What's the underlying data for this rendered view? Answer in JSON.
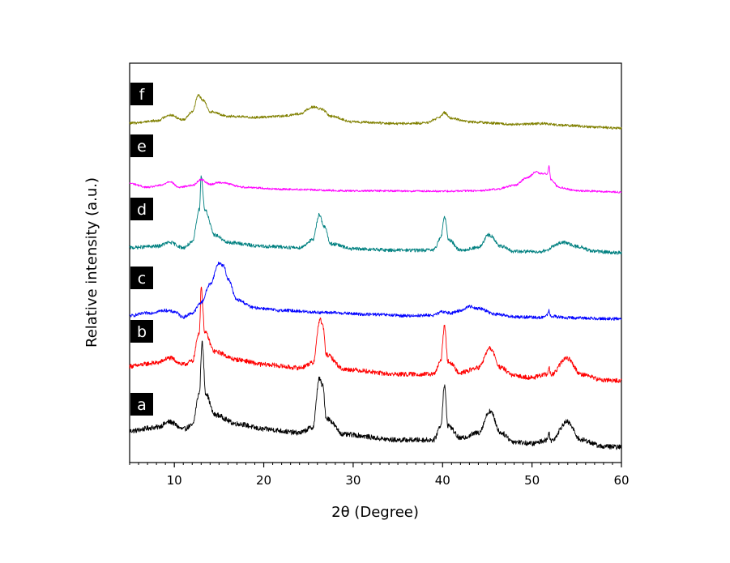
{
  "chart_data": {
    "type": "line",
    "xlabel": "2θ (Degree)",
    "ylabel": "Relative intensity (a.u.)",
    "xlim": [
      5,
      60
    ],
    "xticks": [
      10,
      20,
      30,
      40,
      50,
      60
    ],
    "ylim": [
      0,
      100
    ],
    "yticks_shown": false,
    "grid": false,
    "legend": "none (curves tagged a–f on the left)",
    "series": [
      {
        "name": "a",
        "color": "#000000",
        "baseline": 3,
        "noise": 0.7,
        "points": [
          [
            5,
            7.5
          ],
          [
            8,
            8.5
          ],
          [
            9.5,
            10
          ],
          [
            11,
            8
          ],
          [
            12,
            9
          ],
          [
            12.8,
            18
          ],
          [
            13.1,
            32
          ],
          [
            13.5,
            18
          ],
          [
            14.5,
            12
          ],
          [
            17,
            9.5
          ],
          [
            20,
            8
          ],
          [
            24,
            7
          ],
          [
            25.5,
            8.5
          ],
          [
            26.2,
            22
          ],
          [
            26.6,
            20
          ],
          [
            27,
            11
          ],
          [
            29,
            6.5
          ],
          [
            35,
            5
          ],
          [
            39,
            5
          ],
          [
            39.8,
            9
          ],
          [
            40.2,
            20
          ],
          [
            40.6,
            9
          ],
          [
            42,
            5.5
          ],
          [
            44,
            7
          ],
          [
            45.3,
            13
          ],
          [
            46.5,
            7
          ],
          [
            48,
            4.5
          ],
          [
            50,
            4
          ],
          [
            51.7,
            5
          ],
          [
            51.9,
            7
          ],
          [
            52.1,
            4.8
          ],
          [
            53.9,
            10
          ],
          [
            55.5,
            5
          ],
          [
            58,
            3.2
          ],
          [
            60,
            3
          ]
        ]
      },
      {
        "name": "b",
        "color": "#ff0000",
        "baseline": 3,
        "noise": 0.7,
        "points": [
          [
            5,
            7.5
          ],
          [
            8,
            8.5
          ],
          [
            9.5,
            10
          ],
          [
            11,
            8
          ],
          [
            12,
            9
          ],
          [
            12.8,
            18
          ],
          [
            13.0,
            32
          ],
          [
            13.4,
            18
          ],
          [
            14.5,
            12
          ],
          [
            17,
            9.5
          ],
          [
            20,
            8
          ],
          [
            24,
            7
          ],
          [
            25.5,
            8.5
          ],
          [
            26.3,
            22
          ],
          [
            26.6,
            20
          ],
          [
            27,
            11
          ],
          [
            29,
            6.5
          ],
          [
            35,
            5
          ],
          [
            39,
            5
          ],
          [
            39.8,
            9
          ],
          [
            40.2,
            20
          ],
          [
            40.6,
            9
          ],
          [
            42,
            5.5
          ],
          [
            44,
            7
          ],
          [
            45.3,
            13
          ],
          [
            46.5,
            7
          ],
          [
            48,
            4.5
          ],
          [
            50,
            4
          ],
          [
            51.7,
            5
          ],
          [
            51.9,
            7
          ],
          [
            52.1,
            4.8
          ],
          [
            53.9,
            10
          ],
          [
            55.5,
            5
          ],
          [
            58,
            3.2
          ],
          [
            60,
            3
          ]
        ]
      },
      {
        "name": "c",
        "color": "#0000ff",
        "baseline": 3,
        "noise": 0.6,
        "points": [
          [
            5,
            4
          ],
          [
            7,
            5
          ],
          [
            9,
            6
          ],
          [
            10,
            5.5
          ],
          [
            11,
            3.5
          ],
          [
            12,
            5
          ],
          [
            13,
            9
          ],
          [
            14,
            16
          ],
          [
            15,
            24
          ],
          [
            15.5,
            23
          ],
          [
            16,
            18
          ],
          [
            17,
            10
          ],
          [
            19,
            7
          ],
          [
            22,
            6
          ],
          [
            27,
            5.2
          ],
          [
            32,
            4.5
          ],
          [
            36,
            4
          ],
          [
            39,
            4.2
          ],
          [
            40,
            5.5
          ],
          [
            41,
            5
          ],
          [
            42,
            6
          ],
          [
            43,
            7.5
          ],
          [
            44,
            6.8
          ],
          [
            46,
            4.5
          ],
          [
            48,
            3.6
          ],
          [
            51,
            3.3
          ],
          [
            51.7,
            4
          ],
          [
            51.9,
            6
          ],
          [
            52.1,
            3.8
          ],
          [
            54,
            3.2
          ],
          [
            60,
            2.8
          ]
        ]
      },
      {
        "name": "d",
        "color": "#008080",
        "baseline": 3,
        "noise": 0.7,
        "points": [
          [
            5,
            5
          ],
          [
            8,
            5.5
          ],
          [
            9.5,
            7
          ],
          [
            11,
            5
          ],
          [
            12,
            7
          ],
          [
            12.8,
            20
          ],
          [
            13.0,
            33
          ],
          [
            13.4,
            20
          ],
          [
            14.5,
            10
          ],
          [
            16,
            7
          ],
          [
            20,
            5.5
          ],
          [
            24,
            5
          ],
          [
            25.5,
            8
          ],
          [
            26.2,
            18
          ],
          [
            26.8,
            13
          ],
          [
            27.5,
            6.5
          ],
          [
            30,
            4.5
          ],
          [
            35,
            4
          ],
          [
            39,
            4
          ],
          [
            39.8,
            9
          ],
          [
            40.2,
            17
          ],
          [
            40.7,
            8
          ],
          [
            42,
            4
          ],
          [
            44,
            5
          ],
          [
            45.2,
            10
          ],
          [
            46.5,
            5.5
          ],
          [
            48,
            3.5
          ],
          [
            51,
            3.5
          ],
          [
            53.5,
            7
          ],
          [
            55,
            5.5
          ],
          [
            57,
            3.5
          ],
          [
            60,
            3
          ]
        ]
      },
      {
        "name": "e",
        "color": "#ff00ff",
        "baseline": 3,
        "noise": 0.5,
        "points": [
          [
            5,
            7
          ],
          [
            7,
            5
          ],
          [
            8.5,
            6
          ],
          [
            9.5,
            8
          ],
          [
            10.5,
            5
          ],
          [
            12,
            6
          ],
          [
            13,
            9
          ],
          [
            14,
            6.5
          ],
          [
            15,
            7.5
          ],
          [
            18,
            5
          ],
          [
            22,
            4
          ],
          [
            30,
            3.2
          ],
          [
            40,
            3
          ],
          [
            44,
            3.2
          ],
          [
            46,
            4
          ],
          [
            48,
            6
          ],
          [
            49.5,
            10
          ],
          [
            50.5,
            13
          ],
          [
            51,
            12
          ],
          [
            51.7,
            12
          ],
          [
            51.9,
            16
          ],
          [
            52.1,
            9
          ],
          [
            53,
            5
          ],
          [
            55,
            3.2
          ],
          [
            60,
            2.5
          ]
        ]
      },
      {
        "name": "f",
        "color": "#808000",
        "baseline": 3,
        "noise": 0.55,
        "points": [
          [
            5,
            3
          ],
          [
            8,
            4
          ],
          [
            9.5,
            6.5
          ],
          [
            11,
            4.5
          ],
          [
            12,
            8
          ],
          [
            12.7,
            15
          ],
          [
            13.2,
            13
          ],
          [
            14,
            8
          ],
          [
            16,
            6
          ],
          [
            19,
            5.5
          ],
          [
            22,
            6
          ],
          [
            24,
            7
          ],
          [
            25.5,
            10
          ],
          [
            26.5,
            9
          ],
          [
            27.5,
            6
          ],
          [
            30,
            3.5
          ],
          [
            35,
            2.8
          ],
          [
            38,
            3
          ],
          [
            39.5,
            5
          ],
          [
            40.2,
            7.5
          ],
          [
            41,
            5
          ],
          [
            43,
            3.5
          ],
          [
            48,
            2.5
          ],
          [
            51,
            2.8
          ],
          [
            54,
            2
          ],
          [
            57,
            1.3
          ],
          [
            60,
            0.8
          ]
        ]
      }
    ]
  }
}
